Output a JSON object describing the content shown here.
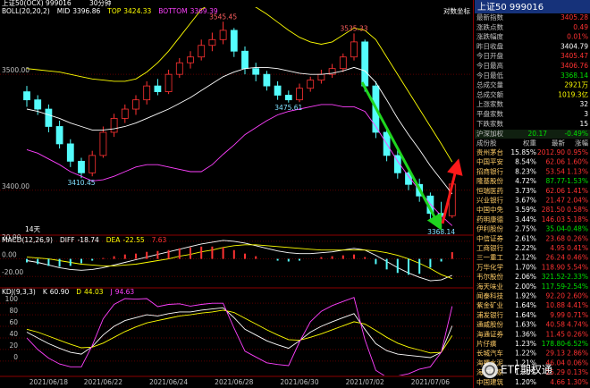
{
  "header": {
    "symbol": "上证50(OCX)  999016",
    "period": "30分钟"
  },
  "chart_data": [
    {
      "type": "candlestick",
      "title": "BOLL(20,20,2)",
      "categories": [
        null,
        null,
        "2021/06/18",
        null,
        null,
        null,
        null,
        "2021/06/22",
        null,
        null,
        null,
        null,
        null,
        "2021/06/24",
        null,
        null,
        null,
        null,
        null,
        "2021/06/28",
        null,
        null,
        null,
        null,
        null,
        "2021/06/30",
        null,
        null,
        null,
        null,
        null,
        "2021/07/02",
        null,
        null,
        null,
        null,
        null,
        "2021/07/06",
        null,
        null
      ],
      "open": [
        3485,
        3478,
        3470,
        3455,
        3440,
        3425,
        3415,
        3430,
        3450,
        3462,
        3470,
        3478,
        3490,
        3485,
        3500,
        3510,
        3515,
        3525,
        3530,
        3538,
        3520,
        3505,
        3500,
        3490,
        3482,
        3478,
        3488,
        3495,
        3500,
        3505,
        3515,
        3528,
        3490,
        3450,
        3430,
        3415,
        3405,
        3395,
        3380,
        3378
      ],
      "high": [
        3490,
        3482,
        3474,
        3460,
        3444,
        3428,
        3434,
        3455,
        3466,
        3474,
        3482,
        3494,
        3496,
        3504,
        3514,
        3520,
        3530,
        3536,
        3545.45,
        3540,
        3524,
        3510,
        3503,
        3494,
        3486,
        3492,
        3498,
        3504,
        3509,
        3518,
        3535.33,
        3530,
        3494,
        3455,
        3436,
        3420,
        3410,
        3398,
        3390,
        3408
      ],
      "low": [
        3472,
        3465,
        3450,
        3436,
        3420,
        3410.45,
        3412,
        3428,
        3446,
        3458,
        3465,
        3474,
        3482,
        3483,
        3497,
        3505,
        3512,
        3520,
        3526,
        3515,
        3500,
        3494,
        3486,
        3478,
        3475.61,
        3476,
        3485,
        3492,
        3497,
        3502,
        3512,
        3485,
        3445,
        3425,
        3410,
        3400,
        3390,
        3375,
        3368.14,
        3376
      ],
      "close": [
        3478,
        3470,
        3455,
        3440,
        3425,
        3415,
        3430,
        3450,
        3462,
        3470,
        3478,
        3490,
        3485,
        3500,
        3510,
        3515,
        3525,
        3530,
        3538,
        3520,
        3505,
        3500,
        3490,
        3482,
        3478,
        3488,
        3495,
        3500,
        3505,
        3515,
        3528,
        3490,
        3450,
        3430,
        3415,
        3405,
        3395,
        3380,
        3378,
        3405.28
      ],
      "up_color": "#ff3232",
      "down_color": "#54fcfc",
      "series": [
        {
          "name": "MID",
          "color": "#ffffff",
          "values": [
            3470,
            3468,
            3465,
            3462,
            3458,
            3455,
            3452,
            3452,
            3453,
            3455,
            3458,
            3462,
            3466,
            3470,
            3475,
            3480,
            3486,
            3492,
            3498,
            3502,
            3505,
            3506,
            3506,
            3505,
            3503,
            3501,
            3500,
            3500,
            3501,
            3503,
            3506,
            3503,
            3493,
            3478,
            3462,
            3448,
            3435,
            3421,
            3409,
            3396.86
          ]
        },
        {
          "name": "TOP",
          "color": "#ffff00",
          "values": [
            3505,
            3504,
            3503,
            3502,
            3500,
            3498,
            3496,
            3495,
            3494,
            3494,
            3496,
            3502,
            3510,
            3520,
            3532,
            3544,
            3556,
            3562,
            3565,
            3565,
            3562,
            3558,
            3552,
            3545,
            3538,
            3532,
            3528,
            3526,
            3528,
            3534,
            3540,
            3538,
            3530,
            3515,
            3500,
            3485,
            3470,
            3455,
            3440,
            3424.33
          ]
        },
        {
          "name": "BOTTOM",
          "color": "#ff40ff",
          "values": [
            3435,
            3432,
            3427,
            3422,
            3416,
            3412,
            3408,
            3409,
            3412,
            3416,
            3420,
            3422,
            3422,
            3420,
            3418,
            3416,
            3416,
            3422,
            3431,
            3439,
            3448,
            3454,
            3460,
            3465,
            3468,
            3470,
            3472,
            3474,
            3474,
            3472,
            3472,
            3468,
            3455,
            3440,
            3425,
            3412,
            3400,
            3388,
            3378,
            3369.39
          ]
        }
      ],
      "labeled_points": [
        {
          "field": "high",
          "index": 18
        },
        {
          "field": "high",
          "index": 30
        },
        {
          "field": "low",
          "index": 24
        },
        {
          "field": "low",
          "index": 5
        },
        {
          "field": "low",
          "index": 38
        }
      ],
      "ylim": [
        3362,
        3558
      ],
      "yticks": [
        {
          "value": 3400,
          "label": "3400.00"
        },
        {
          "value": 3500,
          "label": "3500.00"
        }
      ],
      "scale_note": "对数坐标",
      "period_note": "14天"
    },
    {
      "type": "macd",
      "title": "MACD(12,26,9)",
      "series": [
        {
          "name": "DIFF",
          "color": "#ffffff",
          "values": [
            -2,
            -4,
            -7,
            -10,
            -12,
            -13,
            -12,
            -10,
            -7,
            -4,
            -1,
            2,
            5,
            8,
            11,
            14,
            17,
            19,
            21,
            20,
            18,
            15,
            12,
            9,
            7,
            6,
            6,
            7,
            8,
            10,
            12,
            10,
            4,
            -3,
            -10,
            -16,
            -21,
            -25,
            -24,
            -18.74
          ]
        },
        {
          "name": "DEA",
          "color": "#ffff00",
          "values": [
            2,
            1,
            0,
            -2,
            -4,
            -6,
            -7,
            -8,
            -8,
            -7,
            -6,
            -4,
            -2,
            0,
            3,
            5,
            8,
            10,
            13,
            15,
            16,
            16,
            15,
            14,
            13,
            12,
            11,
            10,
            10,
            10,
            10,
            10,
            9,
            7,
            4,
            0,
            -5,
            -11,
            -18,
            -22.55
          ]
        },
        {
          "kind": "bar",
          "color": "#ff3232",
          "negative_color": "#54fcfc",
          "values": [
            -4,
            -6,
            -8,
            -9,
            -8,
            -5,
            -2,
            1,
            3,
            5,
            6,
            8,
            9,
            10,
            12,
            13,
            14,
            14,
            13,
            10,
            6,
            3,
            0,
            -2,
            -3,
            -2,
            0,
            2,
            3,
            4,
            5,
            2,
            -6,
            -12,
            -16,
            -18,
            -17,
            -10,
            -3,
            7.63
          ]
        }
      ],
      "ylim": [
        -32,
        25
      ],
      "yticks": [
        {
          "value": 20,
          "label": "20.00"
        },
        {
          "value": 0,
          "label": "0.00"
        },
        {
          "value": -20,
          "label": "-20.00"
        }
      ]
    },
    {
      "type": "kdj",
      "title": "KDJ(9,3,3)",
      "series": [
        {
          "name": "K",
          "color": "#ffffff",
          "values": [
            50,
            40,
            30,
            22,
            15,
            12,
            25,
            45,
            60,
            70,
            75,
            80,
            78,
            82,
            85,
            85,
            88,
            90,
            92,
            75,
            55,
            45,
            35,
            28,
            22,
            35,
            50,
            60,
            68,
            75,
            82,
            55,
            30,
            18,
            12,
            10,
            8,
            6,
            15,
            60.9
          ],
          "value_labels": [
            null,
            null,
            null,
            null,
            null,
            null,
            null,
            null,
            null,
            null,
            null,
            null,
            null,
            null,
            null,
            null,
            null,
            null,
            null,
            null,
            null,
            null,
            null,
            null,
            null,
            null,
            null,
            null,
            null,
            null,
            null,
            null,
            null,
            null,
            null,
            null,
            null,
            null,
            null,
            "60.90"
          ]
        },
        {
          "name": "D",
          "color": "#ffff00",
          "values": [
            55,
            50,
            43,
            36,
            29,
            23,
            24,
            31,
            41,
            51,
            59,
            66,
            70,
            74,
            78,
            80,
            83,
            85,
            88,
            84,
            74,
            64,
            54,
            45,
            37,
            36,
            41,
            47,
            54,
            61,
            68,
            64,
            53,
            41,
            31,
            24,
            19,
            14,
            15,
            44.03
          ]
        },
        {
          "name": "J",
          "color": "#ff40ff",
          "values": [
            40,
            20,
            5,
            -5,
            -10,
            -10,
            27,
            73,
            98,
            108,
            107,
            108,
            94,
            98,
            99,
            95,
            98,
            100,
            100,
            57,
            17,
            7,
            -3,
            -6,
            -8,
            33,
            68,
            86,
            96,
            103,
            110,
            37,
            -16,
            -28,
            -26,
            -22,
            -14,
            -10,
            15,
            94.63
          ]
        }
      ],
      "ylim": [
        -25,
        125
      ],
      "yticks": [
        0,
        20,
        40,
        60,
        80,
        100
      ]
    }
  ],
  "quote_panel": {
    "title": "上证50  999016",
    "rows": [
      {
        "label": "最新指数",
        "value": "3405.28",
        "color": "#ff3232"
      },
      {
        "label": "涨跌点数",
        "value": "0.49",
        "color": "#ff3232"
      },
      {
        "label": "涨跌幅度",
        "value": "0.01%",
        "color": "#ff3232"
      },
      {
        "label": "昨日收盘",
        "value": "3404.79",
        "color": "#ffffff"
      },
      {
        "label": "今日开盘",
        "value": "3405.47",
        "color": "#ff3232"
      },
      {
        "label": "今日最高",
        "value": "3406.76",
        "color": "#ff3232"
      },
      {
        "label": "今日最低",
        "value": "3368.14",
        "color": "#00e000"
      },
      {
        "label": "总成交量",
        "value": "2921万",
        "color": "#ffff00"
      },
      {
        "label": "总成交额",
        "value": "1019.3亿",
        "color": "#ffff00"
      },
      {
        "label": "上涨家数",
        "value": "32",
        "color": "#ffffff"
      },
      {
        "label": "平盘家数",
        "value": "3",
        "color": "#ffffff"
      },
      {
        "label": "下跌家数",
        "value": "15",
        "color": "#ffffff"
      }
    ],
    "index_row": [
      "沪深加权",
      "20.17",
      "-0.49%"
    ],
    "columns": [
      "成份股",
      "权重",
      "最新",
      "涨幅"
    ],
    "stocks": [
      [
        "贵州茅台",
        "15.85%",
        "2012.90",
        "0.95%"
      ],
      [
        "中国平安",
        "8.54%",
        "62.06",
        "1.60%"
      ],
      [
        "招商银行",
        "8.23%",
        "53.54",
        "1.13%"
      ],
      [
        "隆基股份",
        "4.72%",
        "87.77",
        "-1.53%"
      ],
      [
        "恒瑞医药",
        "3.73%",
        "62.06",
        "1.41%"
      ],
      [
        "兴业银行",
        "3.67%",
        "21.47",
        "2.04%"
      ],
      [
        "中国中免",
        "3.59%",
        "281.50",
        "0.58%"
      ],
      [
        "药明康德",
        "3.44%",
        "146.03",
        "5.18%"
      ],
      [
        "伊利股份",
        "2.75%",
        "35.04",
        "-0.48%"
      ],
      [
        "中信证券",
        "2.61%",
        "23.68",
        "0.26%"
      ],
      [
        "工商银行",
        "2.22%",
        "4.95",
        "0.41%"
      ],
      [
        "三一重工",
        "2.12%",
        "26.24",
        "0.46%"
      ],
      [
        "万华化学",
        "1.70%",
        "118.90",
        "5.54%"
      ],
      [
        "韦尔股份",
        "2.06%",
        "321.52",
        "-2.33%"
      ],
      [
        "海天味业",
        "2.00%",
        "117.59",
        "-2.54%"
      ],
      [
        "闻泰科技",
        "1.92%",
        "92.20",
        "2.60%"
      ],
      [
        "紫金矿业",
        "1.64%",
        "10.88",
        "4.41%"
      ],
      [
        "浦发银行",
        "1.64%",
        "9.99",
        "0.71%"
      ],
      [
        "通威股份",
        "1.63%",
        "40.58",
        "4.74%"
      ],
      [
        "海通证券",
        "1.36%",
        "11.45",
        "0.26%"
      ],
      [
        "片仔癀",
        "1.23%",
        "178.80",
        "-6.52%"
      ],
      [
        "长城汽车",
        "1.22%",
        "29.13",
        "2.86%"
      ],
      [
        "海螺水泥",
        "1.21%",
        "46.04",
        "0.06%"
      ],
      [
        "海尔智家",
        "1.21%",
        "25.29",
        "0.13%"
      ],
      [
        "中国建筑",
        "1.20%",
        "4.66",
        "1.30%"
      ]
    ]
  },
  "watermark": "ETF期权通"
}
